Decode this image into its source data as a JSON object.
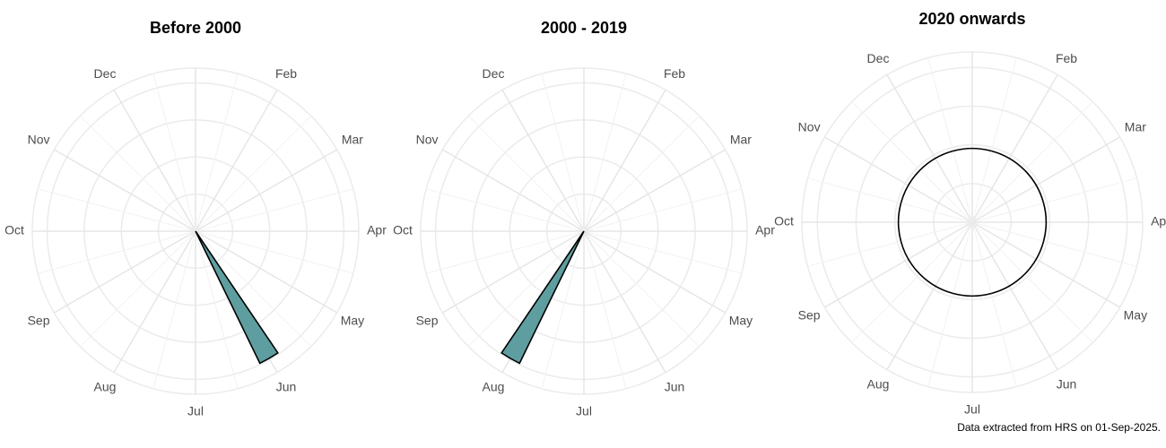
{
  "chart_data": [
    {
      "type": "polar-bar",
      "title": "Before 2000",
      "categories": [
        null,
        "Feb",
        "Mar",
        "Apr",
        "May",
        "Jun",
        "Jul",
        "Aug",
        "Sep",
        "Oct",
        "Nov",
        "Dec"
      ],
      "values": [
        0,
        0,
        0,
        0,
        0,
        1,
        0,
        0,
        0,
        0,
        0,
        0
      ],
      "color": "#5f9ea0",
      "rlim": [
        0,
        1.11
      ],
      "grid": true
    },
    {
      "type": "polar-bar",
      "title": "2000 - 2019",
      "categories": [
        null,
        "Feb",
        "Mar",
        "Apr",
        "May",
        "Jun",
        "Jul",
        "Aug",
        "Sep",
        "Oct",
        "Nov",
        "Dec"
      ],
      "values": [
        0,
        0,
        0,
        0,
        0,
        0,
        0,
        1,
        0,
        0,
        0,
        0
      ],
      "color": "#5f9ea0",
      "rlim": [
        0,
        1.11
      ],
      "grid": true
    },
    {
      "type": "polar-bar",
      "title": "2020 onwards",
      "categories": [
        null,
        "Feb",
        "Mar",
        "Apr",
        "May",
        "Jun",
        "Jul",
        "Aug",
        "Sep",
        "Oct",
        "Nov",
        "Dec"
      ],
      "values": [
        0,
        0,
        0,
        0,
        0,
        0,
        0,
        0,
        0,
        0,
        0,
        0
      ],
      "color": "#5f9ea0",
      "rlim": [
        -1.3,
        1.7
      ],
      "grid": true
    }
  ],
  "caption": "Data extracted from HRS on 01-Sep-2025."
}
